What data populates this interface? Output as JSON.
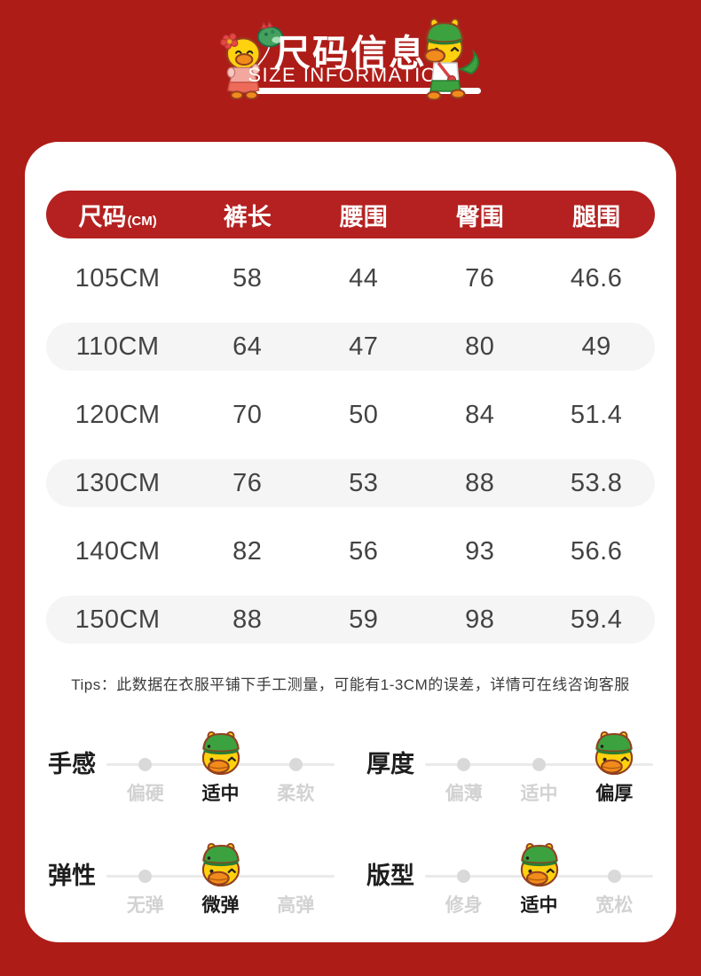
{
  "colors": {
    "background": "#ae1c18",
    "table_header": "#b42120",
    "card": "#ffffff",
    "row_alt": "#f5f5f6",
    "cell_text": "#434343",
    "muted_option": "#d2d2d2",
    "selected_option": "#1b1b1b",
    "duck_yellow": "#ffd10e",
    "duck_bill_orange": "#f18b1b",
    "duck_hat_green": "#3ba23f"
  },
  "header": {
    "title_cn": "尺码信息",
    "title_en": "SIZE INFORMATION",
    "left_mascot_icon": "duck-with-flower-holding-dino-balloon-icon",
    "right_mascot_icon": "duck-in-dragon-costume-icon"
  },
  "size_table": {
    "columns": [
      {
        "label": "尺码",
        "unit": "(CM)"
      },
      {
        "label": "裤长"
      },
      {
        "label": "腰围"
      },
      {
        "label": "臀围"
      },
      {
        "label": "腿围"
      }
    ],
    "rows": [
      {
        "cells": [
          "105CM",
          "58",
          "44",
          "76",
          "46.6"
        ]
      },
      {
        "cells": [
          "110CM",
          "64",
          "47",
          "80",
          "49"
        ]
      },
      {
        "cells": [
          "120CM",
          "70",
          "50",
          "84",
          "51.4"
        ]
      },
      {
        "cells": [
          "130CM",
          "76",
          "53",
          "88",
          "53.8"
        ]
      },
      {
        "cells": [
          "140CM",
          "82",
          "56",
          "93",
          "56.6"
        ]
      },
      {
        "cells": [
          "150CM",
          "88",
          "59",
          "98",
          "59.4"
        ]
      }
    ]
  },
  "tips": "Tips：此数据在衣服平铺下手工测量，可能有1-3CM的误差，详情可在线咨询客服",
  "attributes": [
    {
      "label": "手感",
      "options": [
        "偏硬",
        "适中",
        "柔软"
      ],
      "selected": 1,
      "dots": [
        0,
        2
      ],
      "thumb_icon": "duck-head-icon"
    },
    {
      "label": "厚度",
      "options": [
        "偏薄",
        "适中",
        "偏厚"
      ],
      "selected": 2,
      "dots": [
        0,
        1
      ],
      "thumb_icon": "duck-head-icon"
    },
    {
      "label": "弹性",
      "options": [
        "无弹",
        "微弹",
        "高弹"
      ],
      "selected": 1,
      "dots": [
        0
      ],
      "thumb_icon": "duck-head-icon"
    },
    {
      "label": "版型",
      "options": [
        "修身",
        "适中",
        "宽松"
      ],
      "selected": 1,
      "dots": [
        0,
        2
      ],
      "thumb_icon": "duck-head-icon"
    }
  ]
}
